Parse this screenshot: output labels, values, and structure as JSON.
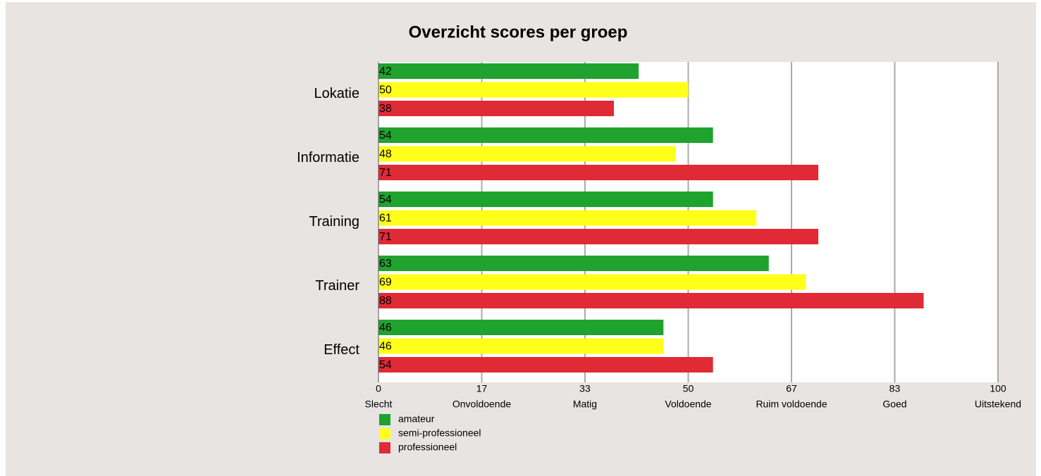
{
  "chart_data": {
    "type": "bar",
    "orientation": "horizontal",
    "title": "Overzicht scores per groep",
    "categories": [
      "Lokatie",
      "Informatie",
      "Training",
      "Trainer",
      "Effect"
    ],
    "series": [
      {
        "name": "amateur",
        "color": "#1fa22e",
        "values": [
          42,
          54,
          54,
          63,
          46
        ]
      },
      {
        "name": "semi-professioneel",
        "color": "#ffff1a",
        "values": [
          50,
          48,
          61,
          69,
          46
        ]
      },
      {
        "name": "professioneel",
        "color": "#e02a35",
        "values": [
          38,
          71,
          71,
          88,
          54
        ]
      }
    ],
    "xlim": [
      0,
      100
    ],
    "xticks": [
      0,
      {
        "value": 16.67,
        "label": "17"
      },
      {
        "value": 33.33,
        "label": "33"
      },
      50,
      {
        "value": 66.67,
        "label": "67"
      },
      {
        "value": 83.33,
        "label": "83"
      },
      100
    ],
    "xtick_names": [
      "Slecht",
      "Onvoldoende",
      "Matig",
      "Voldoende",
      "Ruim voldoende",
      "Goed",
      "Uitstekend"
    ],
    "grid": true,
    "legend": "bottom-left"
  }
}
